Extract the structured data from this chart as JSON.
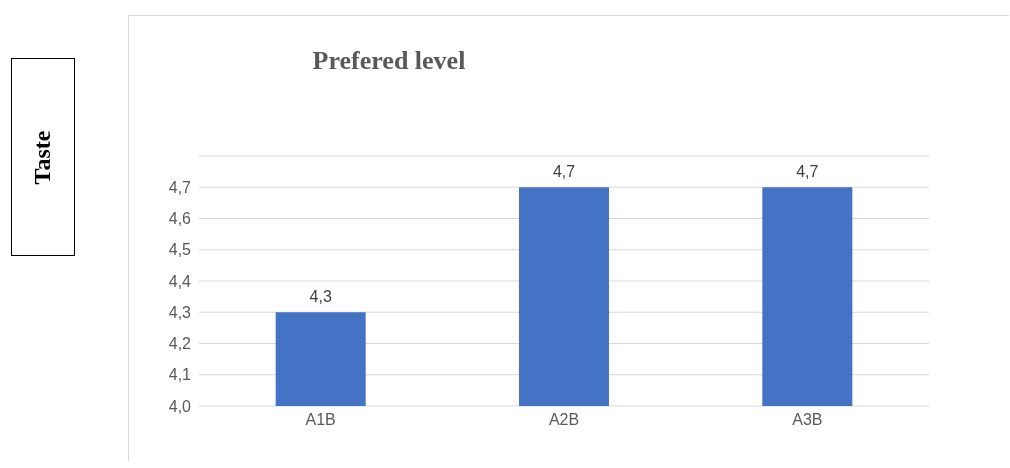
{
  "chart_data": {
    "type": "bar",
    "title": "Prefered level",
    "ylabel": "Taste",
    "categories": [
      "A1B",
      "A2B",
      "A3B"
    ],
    "values": [
      4.3,
      4.7,
      4.7
    ],
    "value_labels": [
      "4,3",
      "4,7",
      "4,7"
    ],
    "color": "#4472c4",
    "ylim": [
      4.0,
      4.8
    ],
    "yticks": [
      {
        "value": 4.0,
        "label": "4,0"
      },
      {
        "value": 4.1,
        "label": "4,1"
      },
      {
        "value": 4.2,
        "label": "4,2"
      },
      {
        "value": 4.3,
        "label": "4,3"
      },
      {
        "value": 4.4,
        "label": "4,4"
      },
      {
        "value": 4.5,
        "label": "4,5"
      },
      {
        "value": 4.6,
        "label": "4,6"
      },
      {
        "value": 4.7,
        "label": "4,7"
      },
      {
        "value": 4.8,
        "label": null
      }
    ],
    "grid": "y",
    "legend": false
  }
}
